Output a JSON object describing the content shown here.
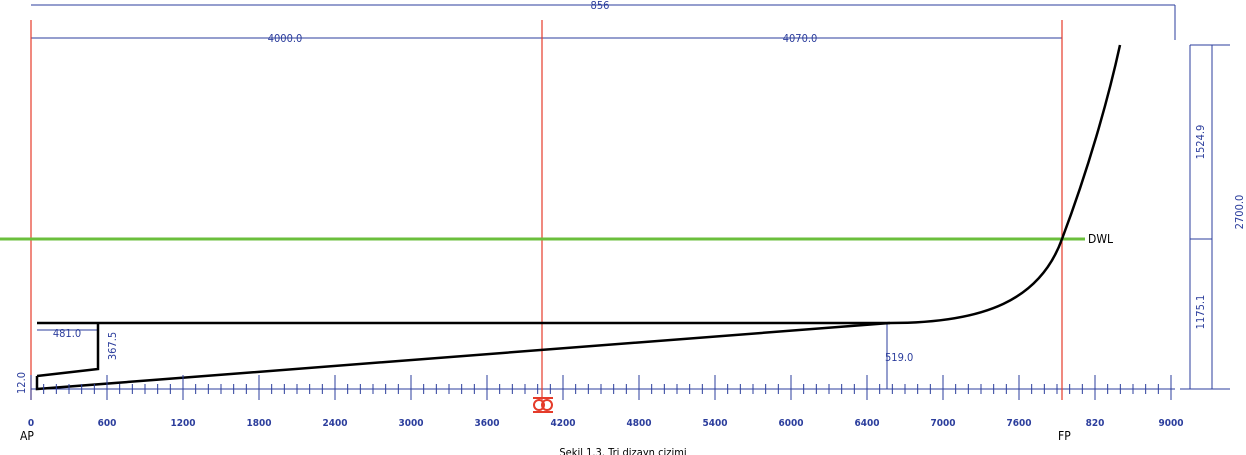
{
  "drawing": {
    "dimensions": {
      "overall": "856",
      "aft": "4000.0",
      "fore": "4070.0",
      "upper_height": "1524.9",
      "total_height": "2700.0",
      "lower_height": "1175.1",
      "transom_width": "481.0",
      "transom_height": "367.5",
      "keel_rise": "519.0",
      "base": "12.0"
    },
    "waterline": "DWL",
    "axis_labels": [
      "0",
      "600",
      "1200",
      "1800",
      "2400",
      "3000",
      "3600",
      "4200",
      "4800",
      "5400",
      "6000",
      "6400",
      "7000",
      "7600",
      "820",
      "9000"
    ],
    "aft_perpendicular": "AP",
    "fore_perpendicular": "FP",
    "caption": "Şekil 1.3. Tri dizayn çizimi"
  }
}
